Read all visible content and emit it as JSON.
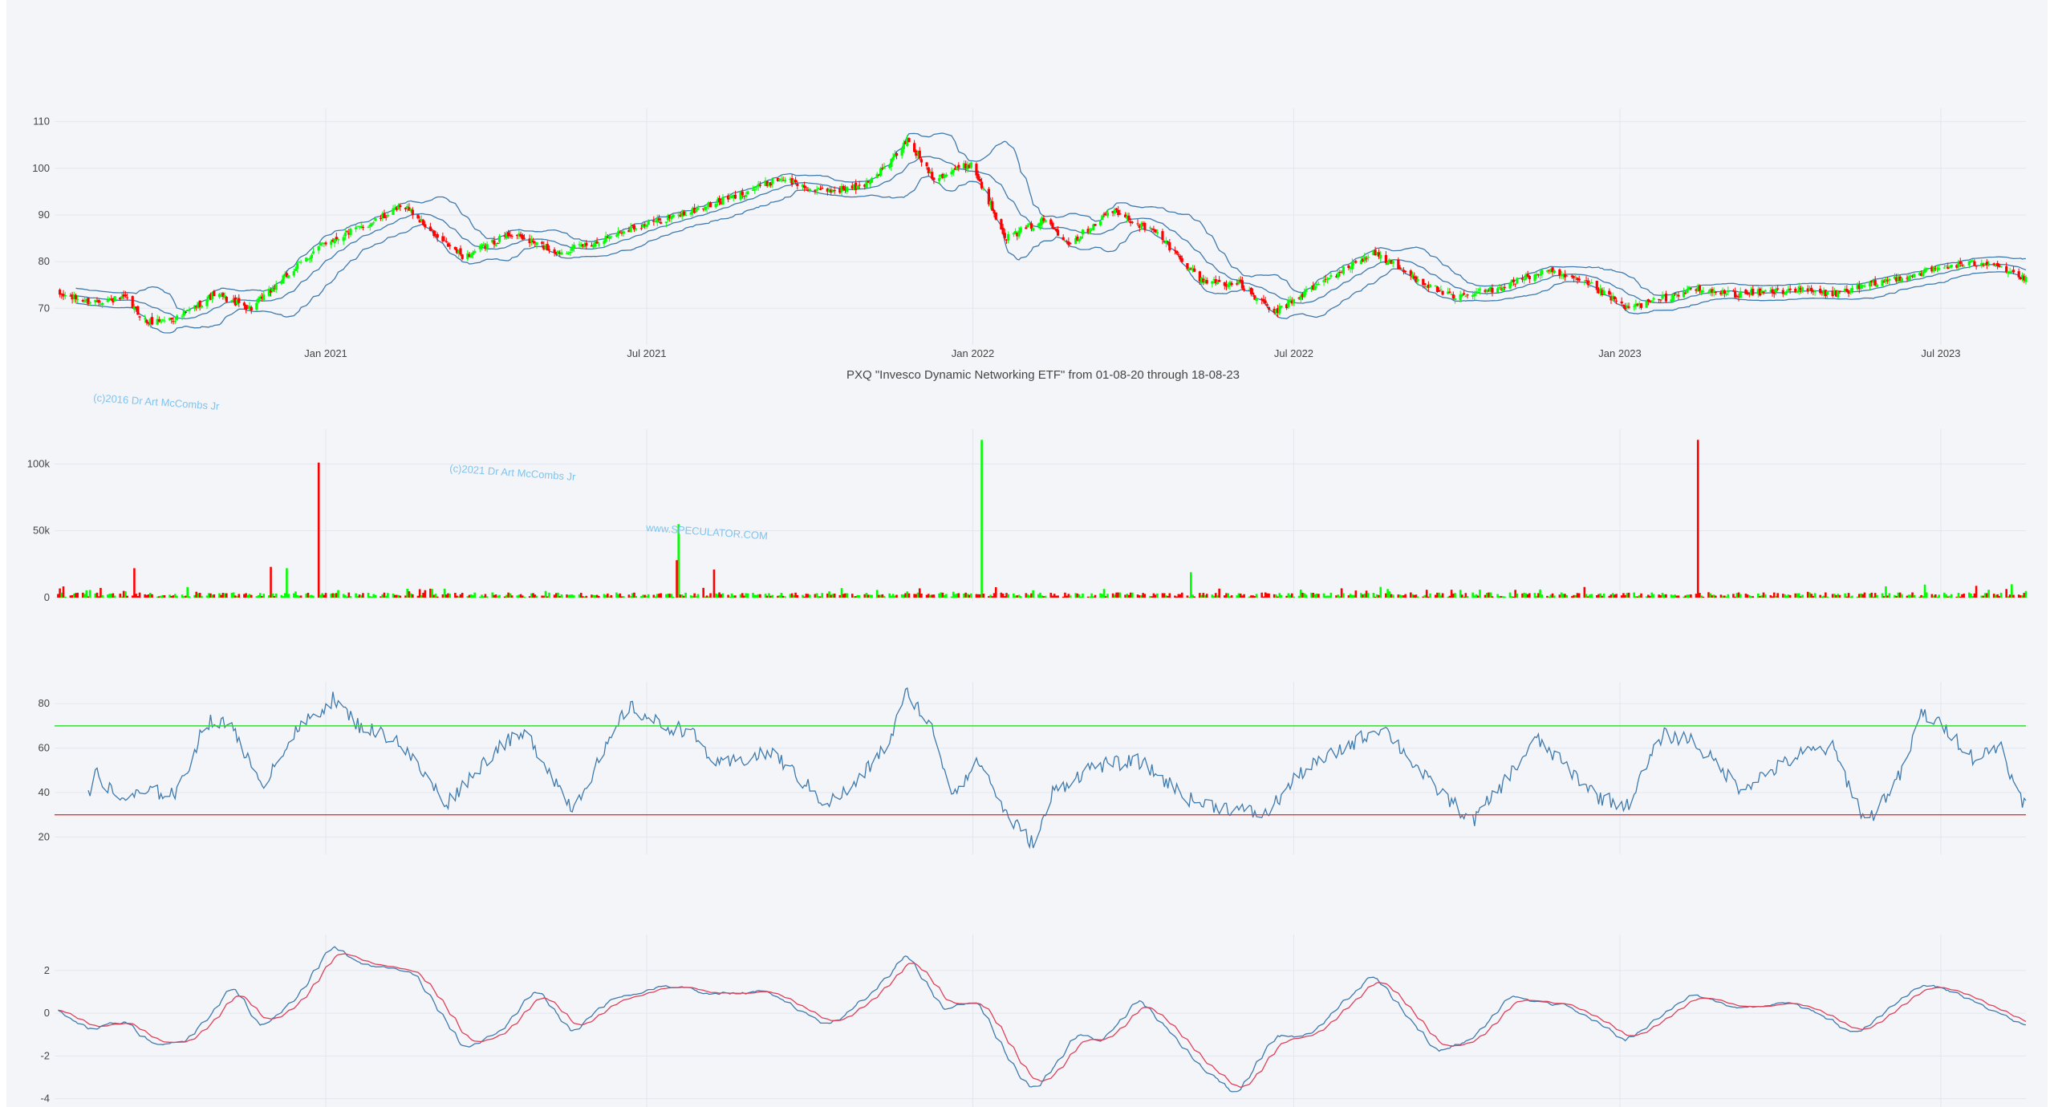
{
  "colors": {
    "background": "#ffffff",
    "plot_bg": "#f4f5f9",
    "grid": "#e3e6ee",
    "up": "#00ff00",
    "down": "#ff0000",
    "line": "#3f7aad",
    "signal": "#e0405a",
    "overbought": "#33dd33",
    "oversold": "#ee3333",
    "watermark": "#7ec4ee"
  },
  "watermarks": [
    "(c)2016 Dr Art McCombs Jr",
    "(c)2021 Dr Art McCombs Jr",
    "www.SPECULATOR.COM"
  ],
  "chart_data": [
    {
      "id": "price",
      "type": "candlestick",
      "title": "PXQ \"Invesco Dynamic Networking ETF\" from 01-08-20 through 18-08-23",
      "x_range": [
        "2020-08-01",
        "2023-08-18"
      ],
      "x_ticks": [
        "Jan 2021",
        "Jul 2021",
        "Jan 2022",
        "Jul 2022",
        "Jan 2023",
        "Jul 2023"
      ],
      "x_tick_dates": [
        "2021-01-01",
        "2021-07-01",
        "2022-01-01",
        "2022-07-01",
        "2023-01-01",
        "2023-07-01"
      ],
      "y_ticks": [
        70,
        80,
        90,
        100,
        110
      ],
      "ylim": [
        63,
        112
      ],
      "overlays": [
        "bollinger-upper",
        "bollinger-middle",
        "bollinger-lower"
      ],
      "close_anchors": [
        [
          "2020-08-03",
          73
        ],
        [
          "2020-08-20",
          71.5
        ],
        [
          "2020-09-10",
          72
        ],
        [
          "2020-09-22",
          67
        ],
        [
          "2020-10-10",
          68
        ],
        [
          "2020-10-30",
          73
        ],
        [
          "2020-11-20",
          70
        ],
        [
          "2020-12-10",
          77
        ],
        [
          "2020-12-31",
          84
        ],
        [
          "2021-01-25",
          88
        ],
        [
          "2021-02-15",
          92
        ],
        [
          "2021-03-05",
          85
        ],
        [
          "2021-03-20",
          81
        ],
        [
          "2021-04-15",
          86
        ],
        [
          "2021-05-12",
          82
        ],
        [
          "2021-06-01",
          84
        ],
        [
          "2021-06-20",
          87
        ],
        [
          "2021-07-20",
          90
        ],
        [
          "2021-08-20",
          94
        ],
        [
          "2021-09-15",
          98
        ],
        [
          "2021-10-05",
          95
        ],
        [
          "2021-10-30",
          96
        ],
        [
          "2021-11-15",
          101
        ],
        [
          "2021-11-25",
          106
        ],
        [
          "2021-12-10",
          98
        ],
        [
          "2021-12-31",
          101
        ],
        [
          "2022-01-20",
          85
        ],
        [
          "2022-02-10",
          89
        ],
        [
          "2022-02-25",
          84
        ],
        [
          "2022-03-20",
          91
        ],
        [
          "2022-04-15",
          86
        ],
        [
          "2022-05-10",
          76
        ],
        [
          "2022-06-01",
          75
        ],
        [
          "2022-06-20",
          69
        ],
        [
          "2022-07-10",
          74
        ],
        [
          "2022-08-15",
          82
        ],
        [
          "2022-09-05",
          77
        ],
        [
          "2022-09-30",
          72
        ],
        [
          "2022-10-20",
          74
        ],
        [
          "2022-11-20",
          78
        ],
        [
          "2022-12-15",
          75
        ],
        [
          "2023-01-05",
          70
        ],
        [
          "2023-01-25",
          72
        ],
        [
          "2023-02-10",
          74
        ],
        [
          "2023-03-10",
          73
        ],
        [
          "2023-04-10",
          74
        ],
        [
          "2023-05-01",
          73
        ],
        [
          "2023-06-01",
          76
        ],
        [
          "2023-07-05",
          79
        ],
        [
          "2023-07-30",
          80
        ],
        [
          "2023-08-18",
          76
        ]
      ]
    },
    {
      "id": "volume",
      "type": "bar",
      "y_ticks": [
        0,
        50000,
        100000
      ],
      "y_tick_labels": [
        "0",
        "50k",
        "100k"
      ],
      "ylim": [
        0,
        123000
      ],
      "spikes": [
        [
          "2020-12-28",
          101000,
          "down"
        ],
        [
          "2021-07-19",
          55000,
          "up"
        ],
        [
          "2021-07-18",
          28000,
          "down"
        ],
        [
          "2022-01-06",
          118000,
          "up"
        ],
        [
          "2022-05-04",
          19000,
          "up"
        ],
        [
          "2023-02-14",
          118000,
          "down"
        ],
        [
          "2020-12-01",
          23000,
          "down"
        ],
        [
          "2020-12-10",
          22000,
          "up"
        ],
        [
          "2020-09-15",
          22000,
          "down"
        ],
        [
          "2021-08-08",
          21000,
          "down"
        ],
        [
          "2023-08-10",
          10000,
          "up"
        ]
      ]
    },
    {
      "id": "rsi",
      "type": "line",
      "y_ticks": [
        20,
        40,
        60,
        80
      ],
      "ylim": [
        14,
        88
      ],
      "overbought": 70,
      "oversold": 30,
      "anchors": [
        [
          "2020-08-20",
          38
        ],
        [
          "2020-08-25",
          49
        ],
        [
          "2020-09-05",
          37
        ],
        [
          "2020-09-25",
          40
        ],
        [
          "2020-10-10",
          40
        ],
        [
          "2020-10-25",
          72
        ],
        [
          "2020-11-10",
          70
        ],
        [
          "2020-11-25",
          42
        ],
        [
          "2020-12-10",
          62
        ],
        [
          "2020-12-20",
          71
        ],
        [
          "2021-01-05",
          82
        ],
        [
          "2021-01-20",
          70
        ],
        [
          "2021-02-10",
          64
        ],
        [
          "2021-03-10",
          35
        ],
        [
          "2021-03-20",
          44
        ],
        [
          "2021-04-10",
          62
        ],
        [
          "2021-04-25",
          66
        ],
        [
          "2021-05-10",
          46
        ],
        [
          "2021-05-20",
          33
        ],
        [
          "2021-06-10",
          62
        ],
        [
          "2021-06-20",
          79
        ],
        [
          "2021-07-10",
          70
        ],
        [
          "2021-07-25",
          68
        ],
        [
          "2021-08-10",
          52
        ],
        [
          "2021-09-10",
          58
        ],
        [
          "2021-10-10",
          35
        ],
        [
          "2021-10-25",
          42
        ],
        [
          "2021-11-15",
          63
        ],
        [
          "2021-11-25",
          86
        ],
        [
          "2021-12-10",
          67
        ],
        [
          "2021-12-20",
          40
        ],
        [
          "2022-01-05",
          54
        ],
        [
          "2022-01-20",
          30
        ],
        [
          "2022-02-05",
          16
        ],
        [
          "2022-02-15",
          40
        ],
        [
          "2022-03-10",
          52
        ],
        [
          "2022-04-05",
          54
        ],
        [
          "2022-05-05",
          36
        ],
        [
          "2022-06-15",
          30
        ],
        [
          "2022-07-05",
          49
        ],
        [
          "2022-07-25",
          58
        ],
        [
          "2022-08-20",
          70
        ],
        [
          "2022-09-15",
          45
        ],
        [
          "2022-10-10",
          27
        ],
        [
          "2022-10-25",
          42
        ],
        [
          "2022-11-15",
          64
        ],
        [
          "2022-12-20",
          38
        ],
        [
          "2023-01-05",
          34
        ],
        [
          "2023-01-25",
          66
        ],
        [
          "2023-02-10",
          64
        ],
        [
          "2023-03-10",
          42
        ],
        [
          "2023-04-15",
          58
        ],
        [
          "2023-05-01",
          60
        ],
        [
          "2023-05-20",
          26
        ],
        [
          "2023-06-10",
          50
        ],
        [
          "2023-06-20",
          76
        ],
        [
          "2023-07-05",
          68
        ],
        [
          "2023-07-20",
          55
        ],
        [
          "2023-08-05",
          62
        ],
        [
          "2023-08-12",
          40
        ],
        [
          "2023-08-18",
          35
        ]
      ]
    },
    {
      "id": "macd",
      "type": "line",
      "y_ticks": [
        -4,
        -2,
        0,
        2
      ],
      "ylim": [
        -4.2,
        3.5
      ],
      "series": [
        "macd",
        "signal"
      ],
      "anchors": [
        [
          "2020-08-03",
          0.1
        ],
        [
          "2020-08-20",
          -0.7
        ],
        [
          "2020-09-10",
          -0.4
        ],
        [
          "2020-09-25",
          -1.4
        ],
        [
          "2020-10-15",
          -1.3
        ],
        [
          "2020-11-10",
          1.3
        ],
        [
          "2020-11-25",
          -0.6
        ],
        [
          "2020-12-15",
          0.6
        ],
        [
          "2021-01-05",
          3.2
        ],
        [
          "2021-01-20",
          2.3
        ],
        [
          "2021-02-20",
          1.9
        ],
        [
          "2021-03-20",
          -1.7
        ],
        [
          "2021-04-10",
          -0.8
        ],
        [
          "2021-05-01",
          1.2
        ],
        [
          "2021-05-20",
          -1.0
        ],
        [
          "2021-06-10",
          0.6
        ],
        [
          "2021-07-10",
          1.3
        ],
        [
          "2021-08-10",
          0.9
        ],
        [
          "2021-09-10",
          1.0
        ],
        [
          "2021-10-10",
          -0.6
        ],
        [
          "2021-11-01",
          0.6
        ],
        [
          "2021-11-25",
          2.8
        ],
        [
          "2021-12-15",
          0.2
        ],
        [
          "2022-01-05",
          0.5
        ],
        [
          "2022-01-20",
          -2.1
        ],
        [
          "2022-02-05",
          -3.7
        ],
        [
          "2022-03-01",
          -1.0
        ],
        [
          "2022-03-15",
          -1.3
        ],
        [
          "2022-04-05",
          0.7
        ],
        [
          "2022-05-10",
          -2.5
        ],
        [
          "2022-05-30",
          -3.8
        ],
        [
          "2022-06-20",
          -1.1
        ],
        [
          "2022-07-10",
          -1.0
        ],
        [
          "2022-08-15",
          1.8
        ],
        [
          "2022-09-20",
          -1.8
        ],
        [
          "2022-10-10",
          -1.2
        ],
        [
          "2022-11-01",
          0.8
        ],
        [
          "2022-12-01",
          0.4
        ],
        [
          "2023-01-05",
          -1.3
        ],
        [
          "2023-02-10",
          0.9
        ],
        [
          "2023-03-10",
          0.2
        ],
        [
          "2023-04-10",
          0.5
        ],
        [
          "2023-05-15",
          -1.0
        ],
        [
          "2023-06-20",
          1.4
        ],
        [
          "2023-07-10",
          1.0
        ],
        [
          "2023-08-18",
          -0.6
        ]
      ]
    }
  ]
}
